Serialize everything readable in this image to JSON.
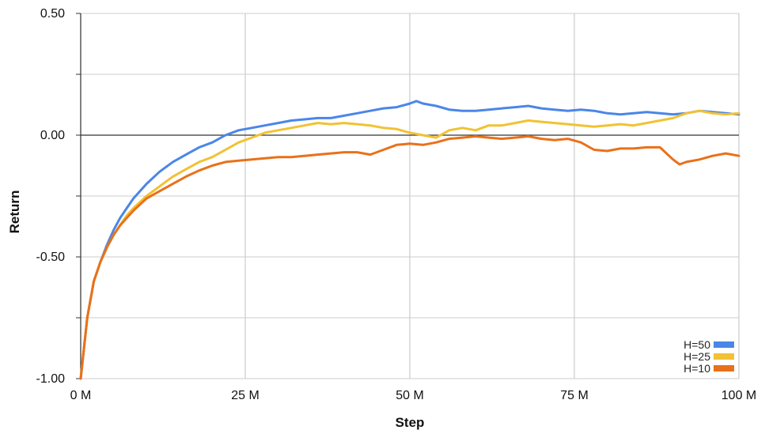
{
  "chart_data": {
    "type": "line",
    "xlabel": "Step",
    "ylabel": "Return",
    "xlim": [
      0,
      100
    ],
    "ylim": [
      -1.0,
      0.5
    ],
    "x_ticks": [
      0,
      25,
      50,
      75,
      100
    ],
    "x_tick_labels": [
      "0 M",
      "25 M",
      "50 M",
      "75 M",
      "100 M"
    ],
    "y_ticks": [
      -1.0,
      -0.5,
      0.0,
      0.5
    ],
    "y_tick_labels": [
      "-1.00",
      "-0.50",
      "0.00",
      "0.50"
    ],
    "grid": true,
    "legend_position": "bottom-right",
    "series": [
      {
        "name": "H=50",
        "color": "#4a86e8",
        "x": [
          0,
          1,
          2,
          3,
          4,
          5,
          6,
          7,
          8,
          10,
          12,
          14,
          16,
          18,
          20,
          22,
          24,
          26,
          28,
          30,
          32,
          34,
          36,
          38,
          40,
          42,
          44,
          46,
          48,
          50,
          51,
          52,
          54,
          56,
          58,
          60,
          62,
          64,
          66,
          68,
          70,
          72,
          74,
          76,
          78,
          80,
          82,
          84,
          86,
          88,
          90,
          92,
          94,
          96,
          98,
          100
        ],
        "y": [
          -1.0,
          -0.75,
          -0.6,
          -0.52,
          -0.45,
          -0.39,
          -0.34,
          -0.3,
          -0.26,
          -0.2,
          -0.15,
          -0.11,
          -0.08,
          -0.05,
          -0.03,
          0.0,
          0.02,
          0.03,
          0.04,
          0.05,
          0.06,
          0.065,
          0.07,
          0.07,
          0.08,
          0.09,
          0.1,
          0.11,
          0.115,
          0.13,
          0.14,
          0.13,
          0.12,
          0.105,
          0.1,
          0.1,
          0.105,
          0.11,
          0.115,
          0.12,
          0.11,
          0.105,
          0.1,
          0.105,
          0.1,
          0.09,
          0.085,
          0.09,
          0.095,
          0.09,
          0.085,
          0.09,
          0.1,
          0.095,
          0.09,
          0.085
        ]
      },
      {
        "name": "H=25",
        "color": "#f1c232",
        "x": [
          0,
          1,
          2,
          3,
          4,
          5,
          6,
          7,
          8,
          10,
          12,
          14,
          16,
          18,
          20,
          22,
          24,
          26,
          28,
          30,
          32,
          34,
          36,
          38,
          40,
          42,
          44,
          46,
          48,
          50,
          52,
          54,
          56,
          58,
          60,
          62,
          64,
          66,
          68,
          70,
          72,
          74,
          76,
          78,
          80,
          82,
          84,
          86,
          88,
          90,
          92,
          94,
          96,
          98,
          100
        ],
        "y": [
          -1.0,
          -0.75,
          -0.6,
          -0.52,
          -0.46,
          -0.41,
          -0.37,
          -0.33,
          -0.3,
          -0.25,
          -0.21,
          -0.17,
          -0.14,
          -0.11,
          -0.09,
          -0.06,
          -0.03,
          -0.01,
          0.01,
          0.02,
          0.03,
          0.04,
          0.05,
          0.045,
          0.05,
          0.045,
          0.04,
          0.03,
          0.025,
          0.01,
          0.0,
          -0.01,
          0.02,
          0.03,
          0.02,
          0.04,
          0.04,
          0.05,
          0.06,
          0.055,
          0.05,
          0.045,
          0.04,
          0.035,
          0.04,
          0.045,
          0.04,
          0.05,
          0.06,
          0.07,
          0.09,
          0.1,
          0.09,
          0.085,
          0.09
        ]
      },
      {
        "name": "H=10",
        "color": "#e8711a",
        "x": [
          0,
          1,
          2,
          3,
          4,
          5,
          6,
          7,
          8,
          10,
          12,
          14,
          16,
          18,
          20,
          22,
          24,
          26,
          28,
          30,
          32,
          34,
          36,
          38,
          40,
          42,
          44,
          46,
          48,
          50,
          52,
          54,
          56,
          58,
          60,
          62,
          64,
          66,
          68,
          70,
          72,
          74,
          76,
          78,
          80,
          82,
          84,
          86,
          88,
          90,
          91,
          92,
          94,
          96,
          98,
          100
        ],
        "y": [
          -1.0,
          -0.75,
          -0.6,
          -0.52,
          -0.46,
          -0.41,
          -0.37,
          -0.34,
          -0.31,
          -0.26,
          -0.23,
          -0.2,
          -0.17,
          -0.145,
          -0.125,
          -0.11,
          -0.105,
          -0.1,
          -0.095,
          -0.09,
          -0.09,
          -0.085,
          -0.08,
          -0.075,
          -0.07,
          -0.07,
          -0.08,
          -0.06,
          -0.04,
          -0.035,
          -0.04,
          -0.03,
          -0.015,
          -0.01,
          -0.005,
          -0.01,
          -0.015,
          -0.01,
          -0.005,
          -0.015,
          -0.02,
          -0.015,
          -0.03,
          -0.06,
          -0.065,
          -0.055,
          -0.055,
          -0.05,
          -0.05,
          -0.1,
          -0.12,
          -0.11,
          -0.1,
          -0.085,
          -0.075,
          -0.085
        ]
      }
    ]
  }
}
